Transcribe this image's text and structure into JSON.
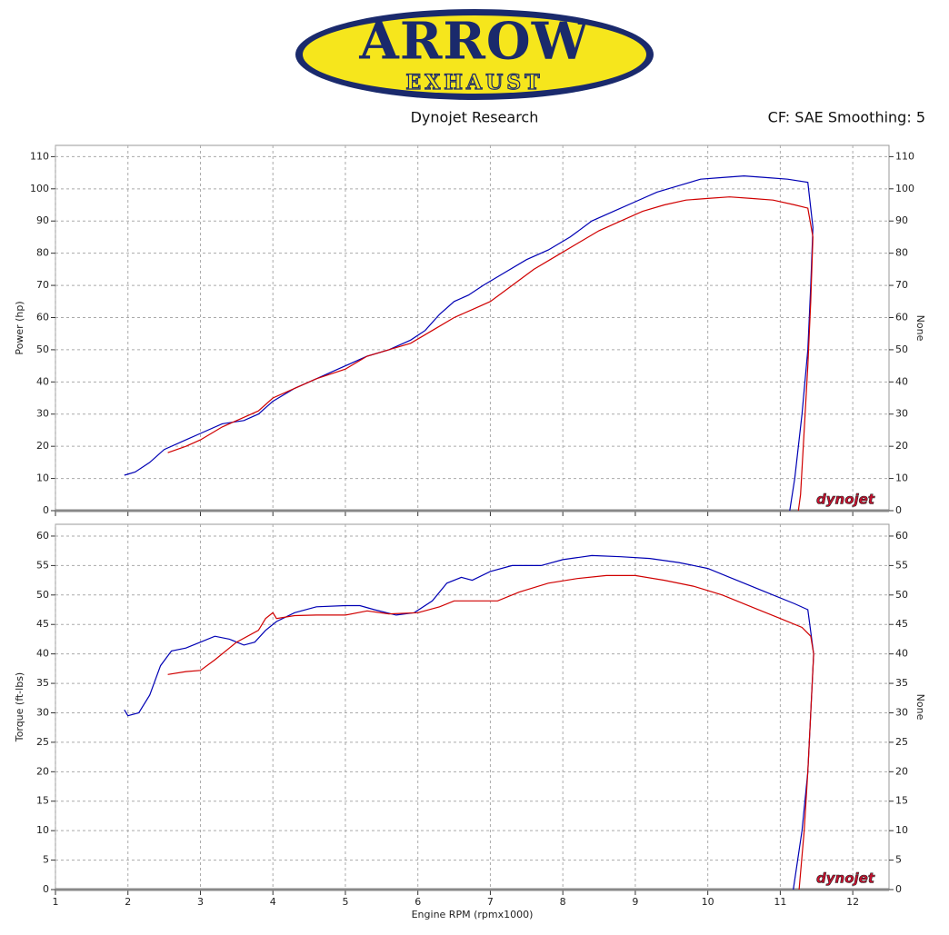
{
  "header": {
    "logo": {
      "brand": "ARROW",
      "sub": "EXHAUST"
    },
    "left": "Dynojet Research",
    "right": "CF: SAE Smoothing: 5"
  },
  "chart_data": [
    {
      "type": "line",
      "ylabel": "Power (hp)",
      "y2label": "None",
      "watermark": "dynojet",
      "xlim": [
        1,
        12.5
      ],
      "xticks": [
        1,
        2,
        3,
        4,
        5,
        6,
        7,
        8,
        9,
        10,
        11,
        12
      ],
      "show_xtick_labels": false,
      "ylim": [
        0,
        113.5
      ],
      "yticks": [
        0,
        10,
        20,
        30,
        40,
        50,
        60,
        70,
        80,
        90,
        100,
        110
      ],
      "y2lim": [
        0,
        113.5
      ],
      "y2ticks": [
        0,
        10,
        20,
        30,
        40,
        50,
        60,
        70,
        80,
        90,
        100,
        110
      ],
      "grid": true,
      "series": [
        {
          "color": "#0000b4",
          "x": [
            1.95,
            2.1,
            2.3,
            2.5,
            2.8,
            3.0,
            3.3,
            3.6,
            3.8,
            4.0,
            4.3,
            4.6,
            5.0,
            5.3,
            5.6,
            5.9,
            6.1,
            6.3,
            6.5,
            6.7,
            6.9,
            7.2,
            7.5,
            7.8,
            8.1,
            8.4,
            8.7,
            9.0,
            9.3,
            9.6,
            9.9,
            10.2,
            10.5,
            10.8,
            11.1,
            11.38,
            11.45,
            11.42,
            11.38,
            11.3,
            11.2,
            11.13
          ],
          "values": [
            11,
            12,
            15,
            19,
            22,
            24,
            27,
            28,
            30,
            34,
            38,
            41,
            45,
            48,
            50,
            53,
            56,
            61,
            65,
            67,
            70,
            74,
            78,
            81,
            85,
            90,
            93,
            96,
            99,
            101,
            103,
            103.5,
            104,
            103.5,
            103,
            102,
            88,
            70,
            50,
            30,
            10,
            0
          ]
        },
        {
          "color": "#d00000",
          "x": [
            2.55,
            2.8,
            3.0,
            3.3,
            3.6,
            3.8,
            4.0,
            4.3,
            4.6,
            5.0,
            5.3,
            5.6,
            5.9,
            6.2,
            6.5,
            6.8,
            7.0,
            7.3,
            7.6,
            7.9,
            8.2,
            8.5,
            8.8,
            9.1,
            9.4,
            9.7,
            10.0,
            10.3,
            10.6,
            10.9,
            11.2,
            11.38,
            11.45,
            11.42,
            11.38,
            11.33,
            11.28,
            11.25
          ],
          "values": [
            18,
            20,
            22,
            26,
            29,
            31,
            35,
            38,
            41,
            44,
            48,
            50,
            52,
            56,
            60,
            63,
            65,
            70,
            75,
            79,
            83,
            87,
            90,
            93,
            95,
            96.5,
            97,
            97.5,
            97,
            96.5,
            95,
            94,
            85,
            65,
            45,
            25,
            5,
            0
          ]
        }
      ]
    },
    {
      "type": "line",
      "ylabel": "Torque (ft-lbs)",
      "y2label": "None",
      "xlabel": "Engine RPM (rpmx1000)",
      "watermark": "dynojet",
      "xlim": [
        1,
        12.5
      ],
      "xticks": [
        1,
        2,
        3,
        4,
        5,
        6,
        7,
        8,
        9,
        10,
        11,
        12
      ],
      "show_xtick_labels": true,
      "ylim": [
        0,
        62
      ],
      "yticks": [
        0,
        5,
        10,
        15,
        20,
        25,
        30,
        35,
        40,
        45,
        50,
        55,
        60
      ],
      "y2lim": [
        0,
        62
      ],
      "y2ticks": [
        0,
        5,
        10,
        15,
        20,
        25,
        30,
        35,
        40,
        45,
        50,
        55,
        60
      ],
      "grid": true,
      "series": [
        {
          "color": "#0000b4",
          "x": [
            1.95,
            2.0,
            2.15,
            2.3,
            2.45,
            2.6,
            2.8,
            3.0,
            3.2,
            3.4,
            3.6,
            3.75,
            3.9,
            4.05,
            4.3,
            4.6,
            5.0,
            5.2,
            5.4,
            5.7,
            5.95,
            6.2,
            6.4,
            6.6,
            6.75,
            7.0,
            7.3,
            7.7,
            8.0,
            8.4,
            8.8,
            9.2,
            9.6,
            10.0,
            10.4,
            10.8,
            11.2,
            11.38,
            11.46,
            11.42,
            11.38,
            11.3,
            11.18
          ],
          "values": [
            30.5,
            29.5,
            30,
            33,
            38,
            40.5,
            41,
            42,
            43,
            42.5,
            41.5,
            42,
            44,
            45.5,
            47,
            48,
            48.2,
            48.2,
            47.5,
            46.6,
            47,
            49,
            52,
            53,
            52.5,
            54,
            55,
            55,
            56,
            56.7,
            56.5,
            56.2,
            55.5,
            54.5,
            52.5,
            50.5,
            48.5,
            47.5,
            40,
            30,
            20,
            10,
            0
          ]
        },
        {
          "color": "#d00000",
          "x": [
            2.55,
            2.8,
            3.0,
            3.2,
            3.5,
            3.8,
            3.9,
            4.0,
            4.05,
            4.3,
            4.6,
            5.0,
            5.3,
            5.6,
            6.0,
            6.3,
            6.5,
            7.0,
            7.1,
            7.4,
            7.8,
            8.2,
            8.6,
            9.0,
            9.4,
            9.8,
            10.2,
            10.6,
            11.0,
            11.3,
            11.42,
            11.46,
            11.42,
            11.38,
            11.33,
            11.26
          ],
          "values": [
            36.5,
            37,
            37.2,
            39,
            42,
            44,
            46,
            47,
            46,
            46.5,
            46.6,
            46.6,
            47.3,
            46.8,
            47,
            48,
            49,
            49,
            49,
            50.5,
            52,
            52.8,
            53.3,
            53.3,
            52.5,
            51.5,
            50,
            48,
            46,
            44.5,
            43,
            40,
            30,
            20,
            10,
            0
          ]
        }
      ]
    }
  ]
}
